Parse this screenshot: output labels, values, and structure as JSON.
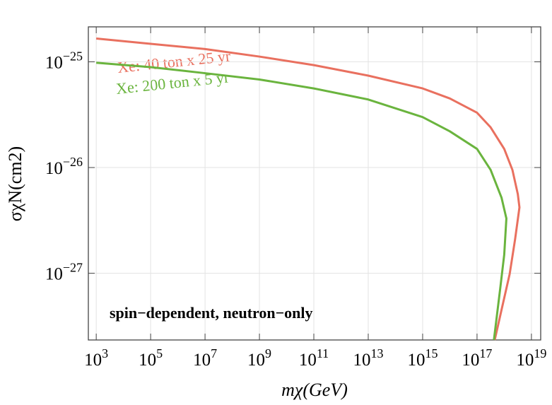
{
  "chart_data": {
    "type": "line",
    "x_label": "mχ(GeV)",
    "y_label": "σχN(cm2)",
    "xscale": "log",
    "yscale": "log",
    "grid": true,
    "xlim": [
      513,
      2.19e+19
    ],
    "ylim": [
      2.34e-28,
      2.14e-25
    ],
    "xticks": [
      {
        "value": 1000.0,
        "label": "103"
      },
      {
        "value": 100000.0,
        "label": "105"
      },
      {
        "value": 10000000.0,
        "label": "107"
      },
      {
        "value": 1000000000.0,
        "label": "109"
      },
      {
        "value": 100000000000.0,
        "label": "1011"
      },
      {
        "value": 10000000000000.0,
        "label": "1013"
      },
      {
        "value": 1000000000000000.0,
        "label": "1015"
      },
      {
        "value": 1e+17,
        "label": "1017"
      },
      {
        "value": 1e+19,
        "label": "1019"
      }
    ],
    "yticks": [
      {
        "value": 1e-25,
        "label": "10−25"
      },
      {
        "value": 1e-26,
        "label": "10−26"
      },
      {
        "value": 1e-27,
        "label": "10−27"
      }
    ],
    "series": [
      {
        "name": "Xe: 40 ton x 25 yr",
        "color": "#e9705f",
        "x": [
          1000.0,
          100000.0,
          10000000.0,
          1000000000.0,
          100000000000.0,
          10000000000000.0,
          1000000000000000.0,
          1e+16,
          1e+17,
          3.16e+17,
          1e+18,
          2e+18,
          3.16e+18,
          3.63e+18,
          2.51e+18,
          1.58e+18,
          7.94e+17,
          4.47e+17
        ],
        "values": [
          1.66e-25,
          1.48e-25,
          1.32e-25,
          1.12e-25,
          9.3e-26,
          7.4e-26,
          5.6e-26,
          4.5e-26,
          3.3e-26,
          2.4e-26,
          1.5e-26,
          9.5e-27,
          5.6e-27,
          4.2e-27,
          2.1e-27,
          9.8e-28,
          4.5e-28,
          2.34e-28
        ]
      },
      {
        "name": "Xe: 200 ton x 5 yr",
        "color": "#6ab43e",
        "x": [
          1000.0,
          100000.0,
          10000000.0,
          1000000000.0,
          100000000000.0,
          10000000000000.0,
          1000000000000000.0,
          1e+16,
          1e+17,
          3.16e+17,
          7.94e+17,
          1.2e+18,
          1e+18,
          7.08e+17,
          4.17e+17
        ],
        "values": [
          9.8e-26,
          8.9e-26,
          7.8e-26,
          6.8e-26,
          5.6e-26,
          4.4e-26,
          3e-26,
          2.2e-26,
          1.5e-26,
          9.5e-27,
          5.2e-27,
          3.3e-27,
          1.5e-27,
          7.1e-28,
          2.34e-28
        ]
      }
    ],
    "annotations": [
      "Xe: 40 ton x 25 yr",
      "Xe: 200 ton x 5 yr",
      "spin−dependent, neutron−only"
    ]
  }
}
